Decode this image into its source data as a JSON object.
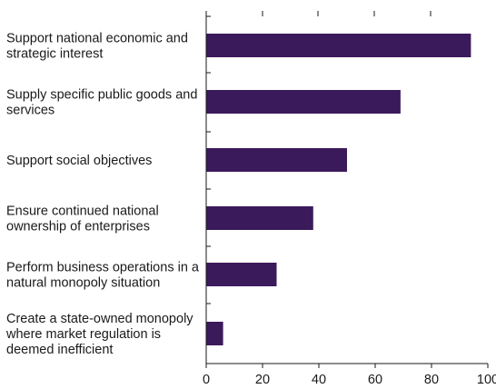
{
  "chart_data": {
    "type": "bar",
    "orientation": "horizontal",
    "categories": [
      [
        "Support national economic and",
        "strategic interest"
      ],
      [
        "Supply specific public goods and",
        "services"
      ],
      [
        "Support social objectives"
      ],
      [
        "Ensure continued national",
        "ownership of enterprises"
      ],
      [
        "Perform business operations in a",
        "natural monopoly situation"
      ],
      [
        "Create a state-owned monopoly",
        "where market regulation is",
        "deemed inefficient"
      ]
    ],
    "values": [
      94,
      69,
      50,
      38,
      25,
      6
    ],
    "xlim": [
      0,
      100
    ],
    "xticks": [
      "0",
      "20",
      "40",
      "60",
      "80",
      "100"
    ],
    "title": "",
    "xlabel": "",
    "ylabel": "",
    "grid": false,
    "bar_color": "#3b1a5c"
  }
}
